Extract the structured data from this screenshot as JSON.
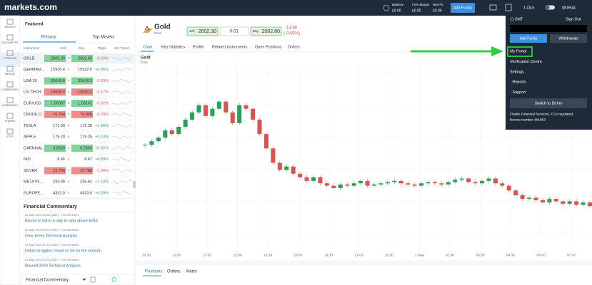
{
  "header": {
    "logo": "markets.com",
    "balance_label": "Balance",
    "balance": "£0.00",
    "free_margin_label": "Free Margin",
    "free_margin": "£0.00",
    "net_pl_label": "Net P/L",
    "net_pl": "£0.00",
    "add_funds": "Add Funds",
    "one_click": "1-Click",
    "account": "$$ REAL"
  },
  "sidebar": [
    "SEARCH",
    "FAVOURITES",
    "POPULAR",
    "INDICES",
    "CURRENCIES",
    "COMMODITY",
    "SHARES",
    "ETFS"
  ],
  "watchlist": {
    "title": "Featured",
    "tabs": [
      "Primary",
      "Top Movers"
    ],
    "columns": [
      "Instrument",
      "Sell",
      "Buy",
      "Chg%",
      "24h Trend"
    ],
    "rows": [
      {
        "name": "GOLD",
        "sell": "2002.30",
        "buy": "2002.60",
        "change": "-0.69%",
        "flash": "green"
      },
      {
        "name": "GERMAN...",
        "sell": "15930.4",
        "buy": "15932.0",
        "change": "+0.06%",
        "flash": "none"
      },
      {
        "name": "USA 30",
        "sell": "33645.8",
        "buy": "33649.3",
        "change": "-0.39%",
        "flash": "green"
      },
      {
        "name": "US TECH...",
        "sell": "13628.0",
        "buy": "13630.2",
        "change": "-0.17%",
        "flash": "red"
      },
      {
        "name": "EUR/USD",
        "sell": "1.09097",
        "buy": "1.09101",
        "change": "-0.02%",
        "flash": "green"
      },
      {
        "name": "CRUDE O...",
        "sell": "70.754",
        "buy": "70.806",
        "change": "-0.78%",
        "flash": "red"
      },
      {
        "name": "TESLA",
        "sell": "171.30",
        "buy": "172.38",
        "change": "+1.56%",
        "flash": "none"
      },
      {
        "name": "APPLE",
        "sell": "179.20",
        "buy": "179.25",
        "change": "+0.13%",
        "flash": "none"
      },
      {
        "name": "CARNIVAL",
        "sell": "9.2620",
        "buy": "9.2650",
        "change": "+0.52%",
        "flash": "green"
      },
      {
        "name": "NIO",
        "sell": "8.46",
        "buy": "8.47",
        "change": "+0.83%",
        "flash": "none"
      },
      {
        "name": "SILVER",
        "sell": "23.760",
        "buy": "23.780",
        "change": "-1.64%",
        "flash": "red"
      },
      {
        "name": "META PL...",
        "sell": "234.99",
        "buy": "236.62",
        "change": "+1.13%",
        "flash": "none"
      },
      {
        "name": "EUROPE...",
        "sell": "4331.0",
        "buy": "4333.0",
        "change": "+0.29%",
        "flash": "none"
      }
    ]
  },
  "commentary": {
    "title": "Financial Commentary",
    "items": [
      {
        "meta": "02 May 2023 03:46 (GMT) · Forex/Futures",
        "headline": "Bitcoin to fall in a rally to stop above $28K"
      },
      {
        "meta": "02 May 2023 02:00 (GMT) · Forex/Futures",
        "headline": "Dow Jones Technical Analysis"
      },
      {
        "meta": "02 May 2023 01:30 (GMT) · Forex/Futures",
        "headline": "Dollar struggles mixed so far on the session"
      },
      {
        "meta": "02 May 2023 00:25 (GMT) · Forex/Futures",
        "headline": "Russell 2000 Technical Analysis"
      }
    ],
    "footer": "Financial Commentary"
  },
  "instrument": {
    "name": "Gold",
    "subtitle": "Gold",
    "sell_label": "Sell",
    "sell": "2002.30",
    "quantity": "0.01",
    "buy_label": "Buy",
    "buy": "2002.60",
    "change": "-13.98",
    "change_pct": "(-0.69%)",
    "tabs": [
      "Chart",
      "Key Statistics",
      "Profile",
      "Related Instruments",
      "Open Positions",
      "Orders"
    ]
  },
  "chart": {
    "type": "candlestick",
    "title": "Gold",
    "subtitle": "Gold",
    "x_labels": [
      "10:30",
      "12:00",
      "13:30",
      "15:00",
      "16:30",
      "18:00",
      "19:30",
      "21:00",
      "22:30",
      "2 May",
      "01:30",
      "03:00",
      "04:30",
      "06:00",
      "07:30"
    ],
    "ylim": [
      1985,
      2061.5
    ],
    "closes": [
      2028.5,
      2030,
      2031.5,
      2034.5,
      2033,
      2036,
      2039,
      2042,
      2045,
      2040.5,
      2043.5,
      2046.5,
      2042,
      2037.5,
      2045,
      2043.5,
      2039,
      2033,
      2027,
      2021,
      2018,
      2019.5,
      2016.5,
      2015,
      2013.5,
      2015,
      2012.5,
      2011.5,
      2010.5,
      2012,
      2011.5,
      2012.5,
      2013.5,
      2011.5,
      2012,
      2012.5,
      2013,
      2013.5,
      2012.5,
      2012,
      2011.5,
      2012.5,
      2013,
      2012.5,
      2012,
      2013,
      2014,
      2014.5,
      2013,
      2012.5,
      2013.5,
      2014.5,
      2012.5,
      2011.5,
      2009.5,
      2007.5,
      2006,
      2006.5,
      2005.5,
      2004.5,
      2006,
      2005,
      2004,
      2005,
      2003.5,
      2004.5,
      2003
    ]
  },
  "positions": {
    "tabs": [
      "Positions",
      "Orders",
      "Alerts"
    ]
  },
  "menu": {
    "timezone": "GMT",
    "sign_out": "Sign Out",
    "add_funds": "Add Funds",
    "withdrawals": "Withdrawals",
    "items": [
      "My Portal",
      "Verification Centre",
      "Settings",
      "· Reports",
      "· Support"
    ],
    "switch": "Switch to Demo",
    "legal": [
      "Finalto Financial Services. FCA regulated,",
      "license number 481853"
    ]
  }
}
